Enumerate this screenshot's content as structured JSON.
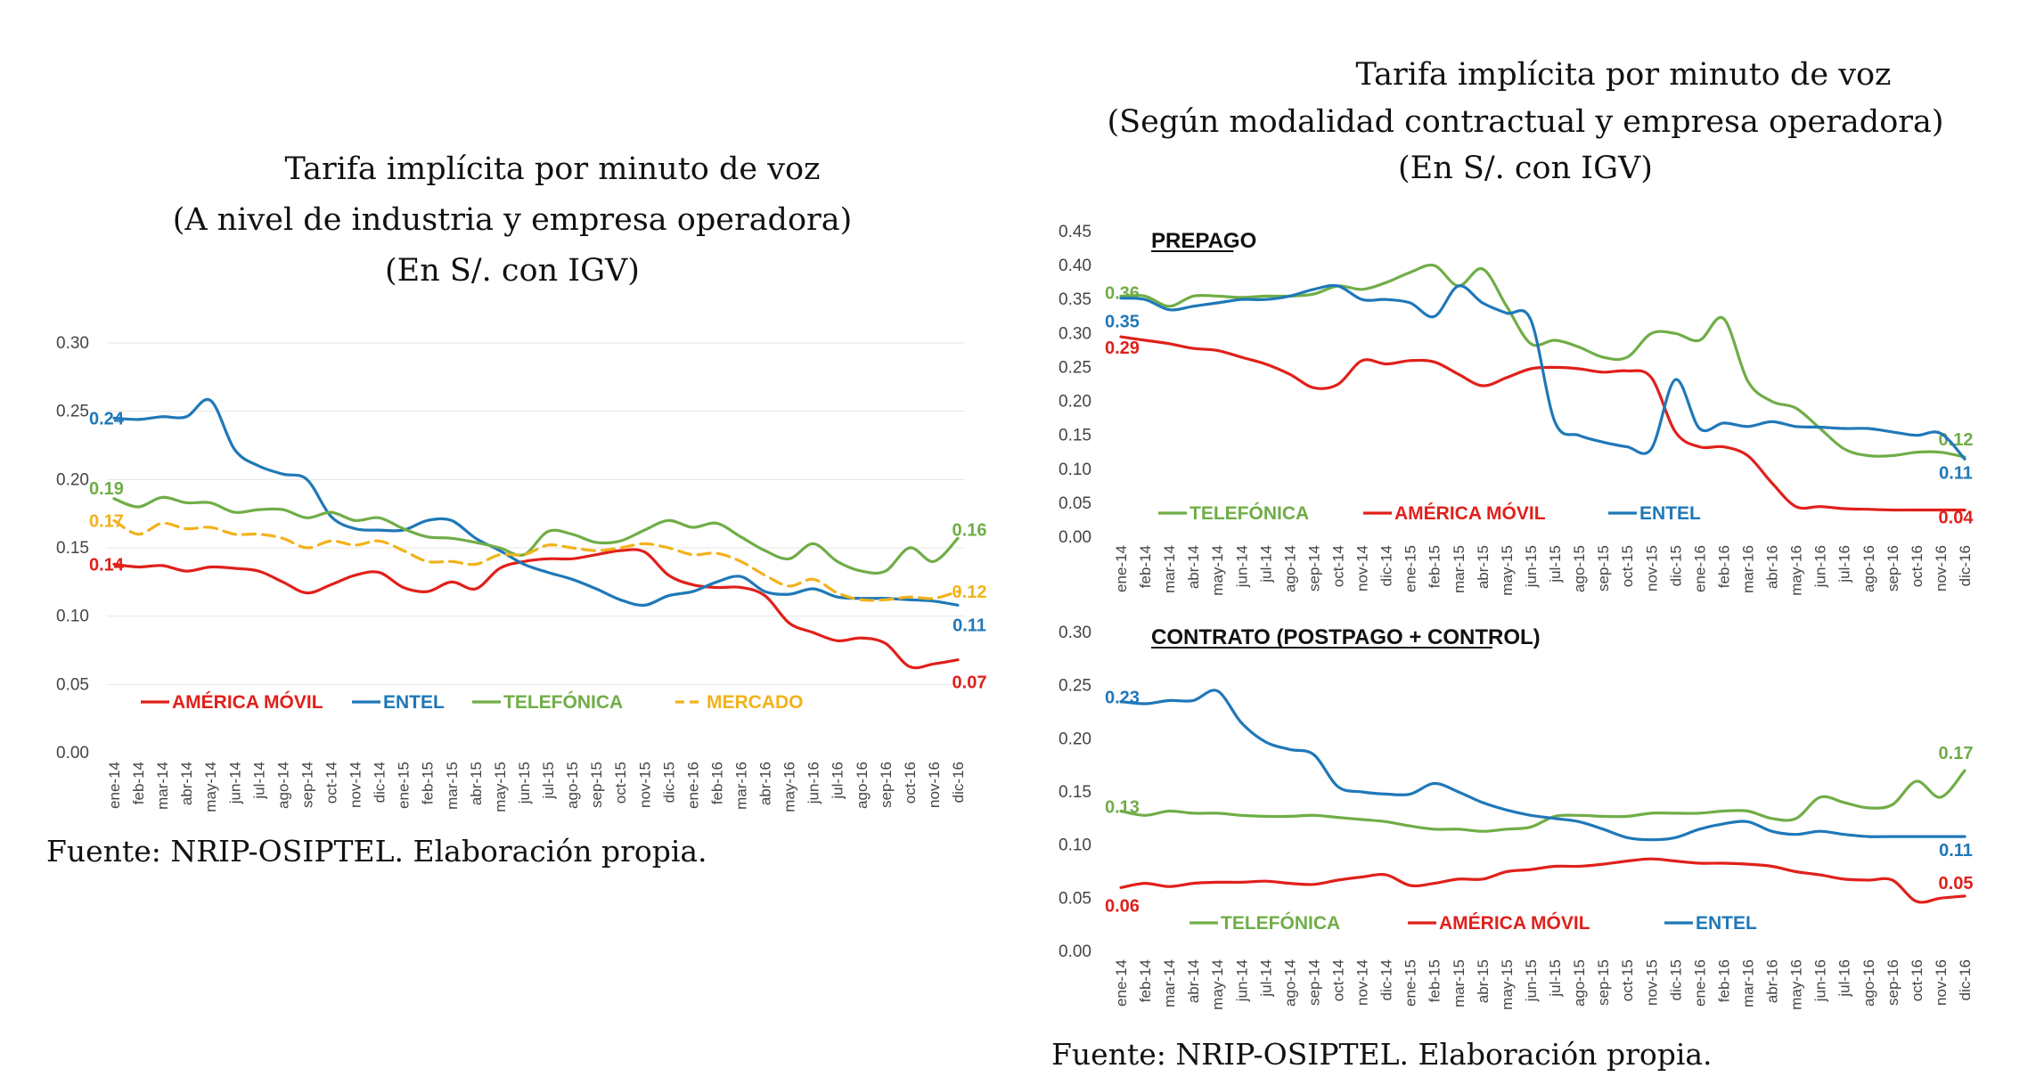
{
  "left": {
    "title_lines": [
      "Tarifa implícita por minuto de voz",
      "(A nivel de industria y empresa operadora)",
      "(En S/. con IGV)"
    ],
    "source": "Fuente: NRIP-OSIPTEL.  Elaboración propia."
  },
  "right": {
    "title_lines": [
      "Tarifa implícita por minuto de voz",
      "(Según modalidad contractual y empresa operadora)",
      "(En S/. con IGV)"
    ],
    "source": "Fuente: NRIP-OSIPTEL.  Elaboración propia."
  },
  "months": [
    "ene-14",
    "feb-14",
    "mar-14",
    "abr-14",
    "may-14",
    "jun-14",
    "jul-14",
    "ago-14",
    "sep-14",
    "oct-14",
    "nov-14",
    "dic-14",
    "ene-15",
    "feb-15",
    "mar-15",
    "abr-15",
    "may-15",
    "jun-15",
    "jul-15",
    "ago-15",
    "sep-15",
    "oct-15",
    "nov-15",
    "dic-15",
    "ene-16",
    "feb-16",
    "mar-16",
    "abr-16",
    "may-16",
    "jun-16",
    "jul-16",
    "ago-16",
    "sep-16",
    "oct-16",
    "nov-16",
    "dic-16"
  ],
  "colors": {
    "america_movil": "#e0201b",
    "entel": "#1f78b8",
    "telefonica": "#70ad47",
    "mercado": "#f2b21b"
  },
  "chart_data": [
    {
      "id": "industry",
      "type": "line",
      "title": "",
      "ylim": [
        0,
        0.3
      ],
      "yticks": [
        "0.00",
        "0.05",
        "0.10",
        "0.15",
        "0.20",
        "0.25",
        "0.30"
      ],
      "grid": true,
      "legend": "bottom",
      "series": [
        {
          "name": "AMÉRICA MÓVIL",
          "key": "america_movil",
          "dashed": false,
          "values": [
            0.138,
            0.136,
            0.137,
            0.133,
            0.136,
            0.135,
            0.133,
            0.125,
            0.117,
            0.123,
            0.13,
            0.132,
            0.121,
            0.118,
            0.125,
            0.12,
            0.135,
            0.14,
            0.142,
            0.142,
            0.145,
            0.148,
            0.147,
            0.13,
            0.123,
            0.121,
            0.121,
            0.115,
            0.095,
            0.088,
            0.082,
            0.084,
            0.08,
            0.063,
            0.065,
            0.068
          ],
          "start_label": "0.14",
          "end_label": "0.07"
        },
        {
          "name": "ENTEL",
          "key": "entel",
          "dashed": false,
          "values": [
            0.245,
            0.244,
            0.246,
            0.246,
            0.258,
            0.222,
            0.21,
            0.204,
            0.2,
            0.173,
            0.164,
            0.163,
            0.163,
            0.17,
            0.17,
            0.157,
            0.148,
            0.138,
            0.132,
            0.127,
            0.12,
            0.112,
            0.108,
            0.115,
            0.118,
            0.125,
            0.129,
            0.118,
            0.116,
            0.12,
            0.114,
            0.113,
            0.113,
            0.112,
            0.111,
            0.108
          ],
          "start_label": "0.24",
          "end_label": "0.11"
        },
        {
          "name": "TELEFÓNICA",
          "key": "telefonica",
          "dashed": false,
          "values": [
            0.186,
            0.18,
            0.187,
            0.183,
            0.183,
            0.176,
            0.178,
            0.178,
            0.172,
            0.176,
            0.17,
            0.172,
            0.164,
            0.158,
            0.157,
            0.154,
            0.15,
            0.145,
            0.162,
            0.16,
            0.154,
            0.155,
            0.163,
            0.17,
            0.165,
            0.168,
            0.158,
            0.148,
            0.142,
            0.153,
            0.14,
            0.133,
            0.133,
            0.15,
            0.14,
            0.157
          ],
          "start_label": "0.19",
          "end_label": "0.16"
        },
        {
          "name": "MERCADO",
          "key": "mercado",
          "dashed": true,
          "values": [
            0.17,
            0.16,
            0.168,
            0.164,
            0.165,
            0.16,
            0.16,
            0.157,
            0.15,
            0.155,
            0.152,
            0.155,
            0.148,
            0.14,
            0.14,
            0.138,
            0.145,
            0.145,
            0.152,
            0.15,
            0.148,
            0.15,
            0.153,
            0.15,
            0.145,
            0.146,
            0.14,
            0.13,
            0.122,
            0.127,
            0.117,
            0.112,
            0.112,
            0.114,
            0.113,
            0.118
          ],
          "start_label": "0.17",
          "end_label": "0.12"
        }
      ]
    },
    {
      "id": "prepago",
      "type": "line",
      "title": "PREPAGO",
      "ylim": [
        0,
        0.45
      ],
      "yticks": [
        "0.00",
        "0.05",
        "0.10",
        "0.15",
        "0.20",
        "0.25",
        "0.30",
        "0.35",
        "0.40",
        "0.45"
      ],
      "grid": false,
      "legend": "bottom",
      "series": [
        {
          "name": "TELEFÓNICA",
          "key": "telefonica",
          "dashed": false,
          "values": [
            0.355,
            0.355,
            0.34,
            0.355,
            0.355,
            0.353,
            0.355,
            0.355,
            0.358,
            0.37,
            0.365,
            0.375,
            0.39,
            0.4,
            0.37,
            0.395,
            0.34,
            0.285,
            0.29,
            0.28,
            0.265,
            0.265,
            0.3,
            0.3,
            0.29,
            0.322,
            0.23,
            0.2,
            0.19,
            0.16,
            0.13,
            0.12,
            0.12,
            0.125,
            0.125,
            0.118
          ],
          "start_label": "0.36",
          "end_label": "0.12"
        },
        {
          "name": "AMÉRICA MÓVIL",
          "key": "america_movil",
          "dashed": false,
          "values": [
            0.295,
            0.29,
            0.285,
            0.278,
            0.275,
            0.265,
            0.255,
            0.24,
            0.22,
            0.225,
            0.26,
            0.255,
            0.26,
            0.258,
            0.24,
            0.223,
            0.235,
            0.248,
            0.25,
            0.248,
            0.243,
            0.245,
            0.235,
            0.155,
            0.133,
            0.133,
            0.12,
            0.08,
            0.045,
            0.045,
            0.042,
            0.041,
            0.04,
            0.04,
            0.04,
            0.04
          ],
          "start_label": "0.29",
          "end_label": "0.04"
        },
        {
          "name": "ENTEL",
          "key": "entel",
          "dashed": false,
          "values": [
            0.352,
            0.35,
            0.335,
            0.34,
            0.345,
            0.35,
            0.35,
            0.355,
            0.365,
            0.37,
            0.35,
            0.35,
            0.345,
            0.325,
            0.37,
            0.345,
            0.33,
            0.32,
            0.17,
            0.15,
            0.14,
            0.133,
            0.13,
            0.232,
            0.16,
            0.168,
            0.163,
            0.17,
            0.163,
            0.162,
            0.16,
            0.16,
            0.155,
            0.15,
            0.153,
            0.115
          ],
          "start_label": "0.35",
          "end_label": "0.11"
        }
      ]
    },
    {
      "id": "contrato",
      "type": "line",
      "title": "CONTRATO (POSTPAGO + CONTROL)",
      "ylim": [
        0,
        0.3
      ],
      "yticks": [
        "0.00",
        "0.05",
        "0.10",
        "0.15",
        "0.20",
        "0.25",
        "0.30"
      ],
      "grid": false,
      "legend": "bottom",
      "series": [
        {
          "name": "TELEFÓNICA",
          "key": "telefonica",
          "dashed": false,
          "values": [
            0.132,
            0.128,
            0.132,
            0.13,
            0.13,
            0.128,
            0.127,
            0.127,
            0.128,
            0.126,
            0.124,
            0.122,
            0.118,
            0.115,
            0.115,
            0.113,
            0.115,
            0.117,
            0.127,
            0.128,
            0.127,
            0.127,
            0.13,
            0.13,
            0.13,
            0.132,
            0.132,
            0.125,
            0.125,
            0.145,
            0.14,
            0.135,
            0.138,
            0.16,
            0.145,
            0.17
          ],
          "start_label": "0.13",
          "end_label": "0.17"
        },
        {
          "name": "AMÉRICA MÓVIL",
          "key": "america_movil",
          "dashed": false,
          "values": [
            0.06,
            0.064,
            0.061,
            0.064,
            0.065,
            0.065,
            0.066,
            0.064,
            0.063,
            0.067,
            0.07,
            0.072,
            0.062,
            0.064,
            0.068,
            0.068,
            0.075,
            0.077,
            0.08,
            0.08,
            0.082,
            0.085,
            0.087,
            0.085,
            0.083,
            0.083,
            0.082,
            0.08,
            0.075,
            0.072,
            0.068,
            0.067,
            0.067,
            0.047,
            0.05,
            0.052
          ],
          "start_label": "0.06",
          "end_label": "0.05"
        },
        {
          "name": "ENTEL",
          "key": "entel",
          "dashed": false,
          "values": [
            0.235,
            0.233,
            0.236,
            0.236,
            0.245,
            0.215,
            0.197,
            0.19,
            0.185,
            0.155,
            0.15,
            0.148,
            0.148,
            0.158,
            0.15,
            0.14,
            0.133,
            0.128,
            0.125,
            0.122,
            0.115,
            0.107,
            0.105,
            0.107,
            0.115,
            0.12,
            0.122,
            0.113,
            0.11,
            0.113,
            0.11,
            0.108,
            0.108,
            0.108,
            0.108,
            0.108
          ],
          "start_label": "0.23",
          "end_label": "0.11"
        }
      ]
    }
  ]
}
